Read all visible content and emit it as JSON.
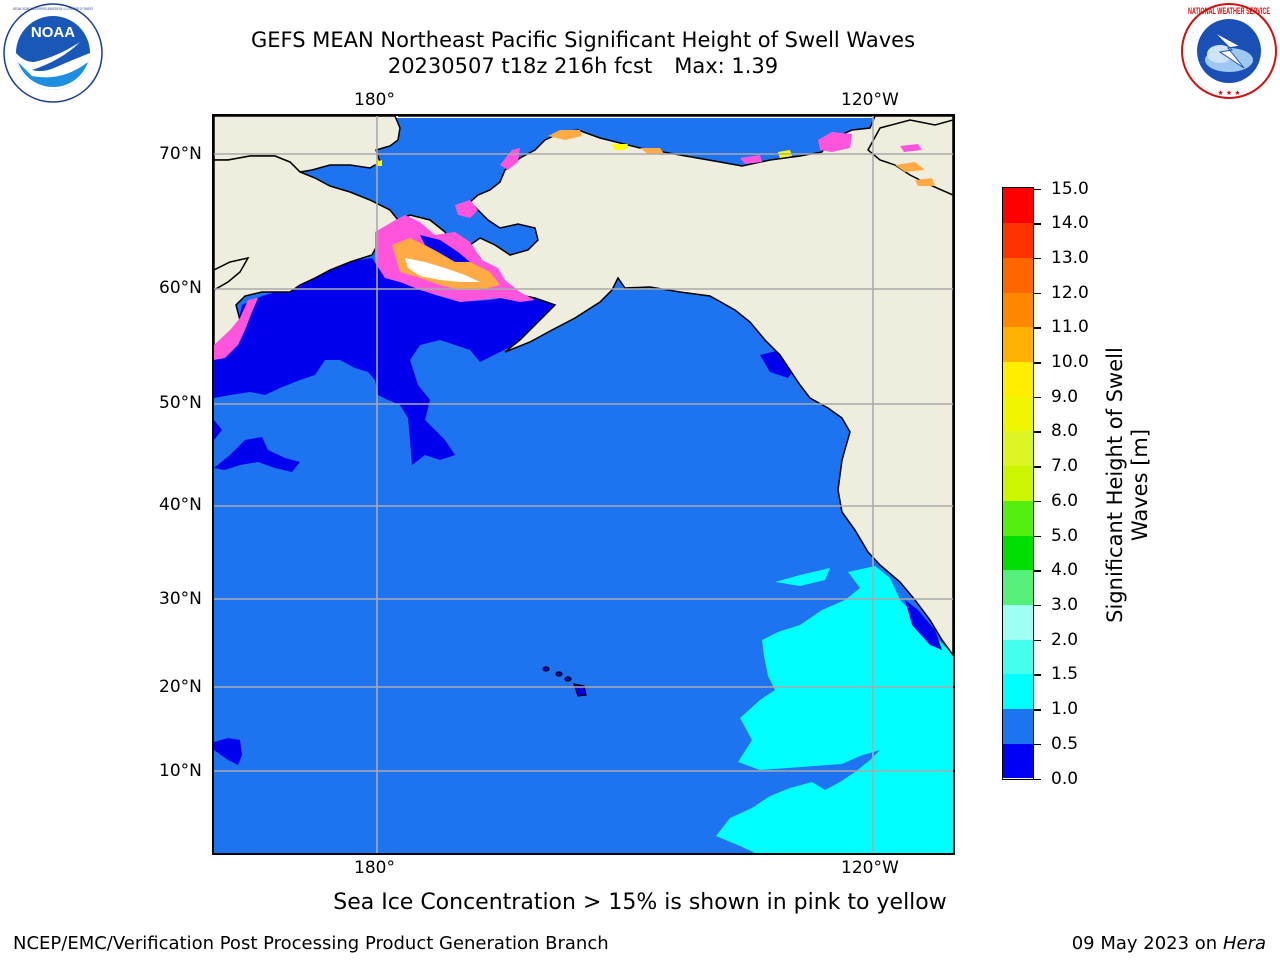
{
  "header": {
    "title_line1": "GEFS MEAN Northeast Pacific Significant Height of Swell Waves",
    "run_label": "20230507 t18z 216h fcst",
    "max_label": "Max: 1.39"
  },
  "logos": {
    "noaa": {
      "text": "NOAA",
      "ring_text": "NATIONAL OCEANIC AND ATMOSPHERIC ADMINISTRATION · U.S. DEPARTMENT OF COMMERCE"
    },
    "nws": {
      "ring_text": "NATIONAL WEATHER SERVICE"
    }
  },
  "map": {
    "lon_labels_top": [
      "180°",
      "120°W"
    ],
    "lon_labels_bottom": [
      "180°",
      "120°W"
    ],
    "lat_labels": [
      "70°N",
      "60°N",
      "50°N",
      "40°N",
      "30°N",
      "20°N",
      "10°N"
    ],
    "colors": {
      "ocean": "#1e73f0",
      "land": "#efedde",
      "low_swell": "#0000ee",
      "mid_swell": "#00ffff",
      "sea_ice": [
        "#ff55dd",
        "#ffaa44",
        "#ffff00"
      ],
      "gridline": "#aaaaaa"
    }
  },
  "colorbar": {
    "title_line1": "Significant Height of Swell",
    "title_line2": "Waves [m]",
    "labels": [
      "15.0",
      "14.0",
      "13.0",
      "12.0",
      "11.0",
      "10.0",
      "9.0",
      "8.0",
      "7.0",
      "6.0",
      "5.0",
      "4.0",
      "3.0",
      "2.0",
      "1.5",
      "1.0",
      "0.5",
      "0.0"
    ],
    "bins": [
      {
        "from": 0.0,
        "to": 0.5,
        "color": "#0000f5"
      },
      {
        "from": 0.5,
        "to": 1.0,
        "color": "#1e73f0"
      },
      {
        "from": 1.0,
        "to": 1.5,
        "color": "#00ffff"
      },
      {
        "from": 1.5,
        "to": 2.0,
        "color": "#44ffee"
      },
      {
        "from": 2.0,
        "to": 3.0,
        "color": "#a0fff5"
      },
      {
        "from": 3.0,
        "to": 4.0,
        "color": "#55f07a"
      },
      {
        "from": 4.0,
        "to": 5.0,
        "color": "#00dd00"
      },
      {
        "from": 5.0,
        "to": 6.0,
        "color": "#55ee11"
      },
      {
        "from": 6.0,
        "to": 7.0,
        "color": "#ccf500"
      },
      {
        "from": 7.0,
        "to": 8.0,
        "color": "#ddf522"
      },
      {
        "from": 8.0,
        "to": 9.0,
        "color": "#f0f500"
      },
      {
        "from": 9.0,
        "to": 10.0,
        "color": "#ffee00"
      },
      {
        "from": 10.0,
        "to": 11.0,
        "color": "#ffb000"
      },
      {
        "from": 11.0,
        "to": 12.0,
        "color": "#ff8800"
      },
      {
        "from": 12.0,
        "to": 13.0,
        "color": "#ff6600"
      },
      {
        "from": 13.0,
        "to": 14.0,
        "color": "#ff3300"
      },
      {
        "from": 14.0,
        "to": 15.0,
        "color": "#ff0000"
      }
    ]
  },
  "footer": {
    "note": "Sea Ice Concentration > 15% is shown in pink to yellow",
    "credit": "NCEP/EMC/Verification Post Processing Product Generation Branch",
    "date": "09 May 2023 on",
    "host": "Hera"
  }
}
